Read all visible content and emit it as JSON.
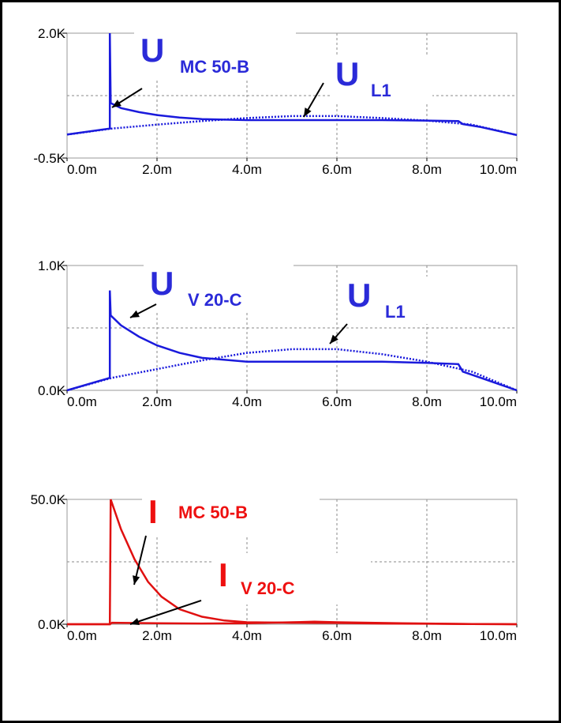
{
  "chart_data": [
    {
      "type": "line",
      "xlim": [
        0,
        10
      ],
      "ylim": [
        -0.5,
        2.0
      ],
      "xticks": [
        {
          "value": 0,
          "label": "0.0m"
        },
        {
          "value": 2,
          "label": "2.0m"
        },
        {
          "value": 4,
          "label": "4.0m"
        },
        {
          "value": 6,
          "label": "6.0m"
        },
        {
          "value": 8,
          "label": "8.0m"
        },
        {
          "value": 10,
          "label": "10.0m"
        }
      ],
      "yticks": [
        {
          "value": -0.5,
          "label": "-0.5K"
        },
        {
          "value": 2.0,
          "label": "2.0K"
        }
      ],
      "ygrid": [
        0.75
      ],
      "grid": true,
      "series": [
        {
          "color": "#1a1adc",
          "style": "solid",
          "x": [
            0,
            0.95,
            0.95,
            0.97,
            1.2,
            1.6,
            2,
            2.5,
            3,
            4,
            5,
            6,
            7,
            8,
            8.7,
            8.8,
            9.2,
            10
          ],
          "values": [
            -0.03,
            0.09,
            2.0,
            0.6,
            0.5,
            0.42,
            0.36,
            0.31,
            0.28,
            0.26,
            0.26,
            0.26,
            0.26,
            0.25,
            0.24,
            0.18,
            0.12,
            -0.04
          ]
        },
        {
          "color": "#1a1adc",
          "style": "dotted",
          "x": [
            0,
            1,
            2,
            3,
            4,
            5,
            6,
            7,
            8,
            9,
            10
          ],
          "values": [
            -0.03,
            0.09,
            0.17,
            0.24,
            0.3,
            0.34,
            0.34,
            0.3,
            0.25,
            0.17,
            -0.04
          ]
        }
      ],
      "annotations": [
        {
          "text": "U",
          "sub": "MC 50-B",
          "color": "#2a2ad8"
        },
        {
          "text": "U",
          "sub": "L1",
          "color": "#2a2ad8"
        }
      ]
    },
    {
      "type": "line",
      "xlim": [
        0,
        10
      ],
      "ylim": [
        0,
        1.0
      ],
      "xticks": [
        {
          "value": 0,
          "label": "0.0m"
        },
        {
          "value": 2,
          "label": "2.0m"
        },
        {
          "value": 4,
          "label": "4.0m"
        },
        {
          "value": 6,
          "label": "6.0m"
        },
        {
          "value": 8,
          "label": "8.0m"
        },
        {
          "value": 10,
          "label": "10.0m"
        }
      ],
      "yticks": [
        {
          "value": 0,
          "label": "0.0K"
        },
        {
          "value": 1.0,
          "label": "1.0K"
        }
      ],
      "ygrid": [
        0.5
      ],
      "grid": true,
      "series": [
        {
          "color": "#1a1adc",
          "style": "solid",
          "x": [
            0,
            0.95,
            0.95,
            0.97,
            1.2,
            1.6,
            2,
            2.5,
            3,
            4,
            5,
            6,
            7,
            8,
            8.7,
            8.8,
            9.2,
            10
          ],
          "values": [
            0,
            0.1,
            0.8,
            0.6,
            0.52,
            0.43,
            0.36,
            0.3,
            0.26,
            0.23,
            0.23,
            0.23,
            0.23,
            0.22,
            0.21,
            0.15,
            0.1,
            0
          ]
        },
        {
          "color": "#1a1adc",
          "style": "dotted",
          "x": [
            0,
            1,
            2,
            3,
            4,
            5,
            6,
            7,
            8,
            9,
            10
          ],
          "values": [
            0,
            0.1,
            0.17,
            0.24,
            0.3,
            0.33,
            0.33,
            0.29,
            0.23,
            0.15,
            0
          ]
        }
      ],
      "annotations": [
        {
          "text": "U",
          "sub": "V 20-C",
          "color": "#2a2ad8"
        },
        {
          "text": "U",
          "sub": "L1",
          "color": "#2a2ad8"
        }
      ]
    },
    {
      "type": "line",
      "xlim": [
        0,
        10
      ],
      "ylim": [
        0,
        50
      ],
      "xticks": [
        {
          "value": 0,
          "label": "0.0m"
        },
        {
          "value": 2,
          "label": "2.0m"
        },
        {
          "value": 4,
          "label": "4.0m"
        },
        {
          "value": 6,
          "label": "6.0m"
        },
        {
          "value": 8,
          "label": "8.0m"
        },
        {
          "value": 10,
          "label": "10.0m"
        }
      ],
      "yticks": [
        {
          "value": 0,
          "label": "0.0K"
        },
        {
          "value": 50,
          "label": "50.0K"
        }
      ],
      "ygrid": [
        25
      ],
      "grid": true,
      "series": [
        {
          "color": "#e01010",
          "style": "solid",
          "x": [
            0,
            0.95,
            0.97,
            1.2,
            1.5,
            1.8,
            2.1,
            2.5,
            3,
            3.5,
            4,
            5,
            6,
            7,
            8,
            9,
            10
          ],
          "values": [
            0,
            0,
            50,
            38,
            26,
            17,
            11,
            6,
            3,
            1.5,
            0.8,
            0.6,
            0.5,
            0.3,
            0.2,
            0.1,
            0
          ]
        },
        {
          "color": "#e01010",
          "style": "solid",
          "x": [
            0,
            0.95,
            1.0,
            2,
            3,
            4,
            5,
            5.5,
            6,
            7,
            8,
            9,
            10
          ],
          "values": [
            0,
            0,
            0.6,
            0.4,
            0.3,
            0.4,
            0.8,
            1.0,
            0.8,
            0.5,
            0.3,
            0.1,
            0
          ]
        }
      ],
      "annotations": [
        {
          "text": "I",
          "sub": "MC 50-B",
          "color": "#ee1010"
        },
        {
          "text": "I",
          "sub": "V 20-C",
          "color": "#ee1010"
        }
      ]
    }
  ]
}
